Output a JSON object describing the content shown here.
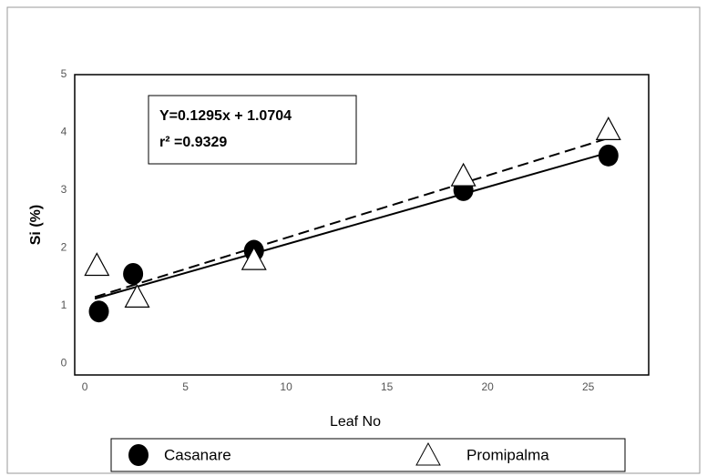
{
  "chart_data": {
    "type": "scatter",
    "xlabel": "Leaf No",
    "ylabel": "Si (%)",
    "xlim": [
      -0.5,
      28
    ],
    "ylim": [
      -0.2,
      5
    ],
    "xticks": [
      0,
      5,
      10,
      15,
      20,
      25
    ],
    "yticks": [
      0,
      1,
      2,
      3,
      4,
      5
    ],
    "annotation": [
      "Y=0.1295x + 1.0704",
      "r² =0.9329"
    ],
    "legend": "bottom",
    "series": [
      {
        "name": "Casanare",
        "marker": "circle",
        "color": "#000000",
        "x": [
          0.7,
          2.4,
          8.4,
          18.8,
          26.0
        ],
        "values": [
          0.9,
          1.55,
          1.95,
          3.0,
          3.6
        ],
        "trendline": {
          "dashed": false,
          "x": [
            0.5,
            26.0
          ],
          "values": [
            1.12,
            3.65
          ]
        }
      },
      {
        "name": "Promipalma",
        "marker": "triangle",
        "color": "#000000",
        "x": [
          0.6,
          2.6,
          8.4,
          18.8,
          26.0
        ],
        "values": [
          1.7,
          1.15,
          1.8,
          3.25,
          4.05
        ],
        "trendline": {
          "dashed": true,
          "x": [
            0.5,
            26.0
          ],
          "values": [
            1.15,
            3.9
          ]
        }
      }
    ]
  }
}
